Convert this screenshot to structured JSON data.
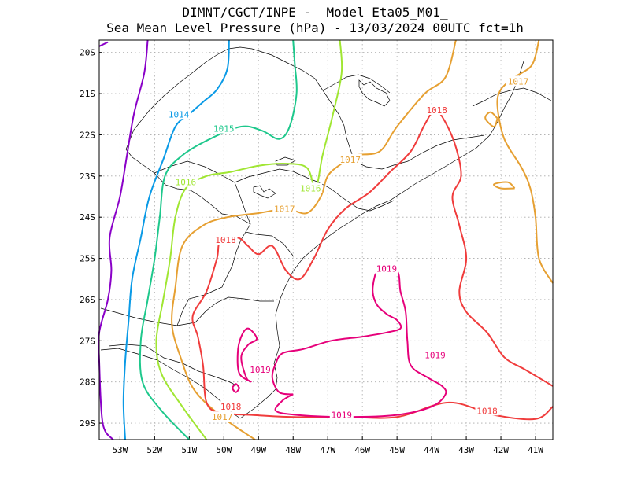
{
  "title": {
    "line1": "DIMNT/CGCT/INPE -  Model Eta05_M01_",
    "line2": "Sea Mean Level Pressure (hPa) - 13/03/2024 00UTC fct=1h"
  },
  "axes": {
    "lat_labels": [
      "20S",
      "21S",
      "22S",
      "23S",
      "24S",
      "25S",
      "26S",
      "27S",
      "28S",
      "29S"
    ],
    "lon_labels": [
      "53W",
      "52W",
      "51W",
      "50W",
      "49W",
      "48W",
      "47W",
      "46W",
      "45W",
      "44W",
      "43W",
      "42W",
      "41W"
    ],
    "lon_range": [
      -53.6,
      -40.5
    ],
    "lat_range": [
      -29.4,
      -19.7
    ],
    "grid": true
  },
  "colors": {
    "c1013": "#8a00c8",
    "c1014": "#0a9ae6",
    "c1015": "#1ec88c",
    "c1016": "#a0e632",
    "c1017": "#e6a032",
    "c1018": "#f03c3c",
    "c1019": "#e6007a"
  },
  "isobars": [
    {
      "level": 1013,
      "color": "c1013",
      "points": [
        [
          -53.2,
          -29.4
        ],
        [
          -53.5,
          -29.0
        ],
        [
          -53.6,
          -27.5
        ],
        [
          -53.6,
          -26.8
        ],
        [
          -53.35,
          -26.0
        ],
        [
          -53.25,
          -25.3
        ],
        [
          -53.3,
          -24.5
        ],
        [
          -53.0,
          -23.5
        ],
        [
          -52.8,
          -22.5
        ],
        [
          -52.6,
          -21.5
        ],
        [
          -52.3,
          -20.5
        ],
        [
          -52.2,
          -19.7
        ]
      ]
    },
    {
      "level": 1013,
      "color": "c1013",
      "points": [
        [
          -53.6,
          -19.85
        ],
        [
          -53.35,
          -19.75
        ]
      ]
    },
    {
      "level": 1014,
      "color": "c1014",
      "points": [
        [
          -52.85,
          -29.4
        ],
        [
          -52.9,
          -28.5
        ],
        [
          -52.85,
          -27.5
        ],
        [
          -52.75,
          -26.5
        ],
        [
          -52.65,
          -25.5
        ],
        [
          -52.4,
          -24.5
        ],
        [
          -52.15,
          -23.5
        ],
        [
          -51.75,
          -22.6
        ],
        [
          -51.4,
          -21.8
        ],
        [
          -51.0,
          -21.5
        ],
        [
          -50.6,
          -21.2
        ],
        [
          -50.2,
          -20.9
        ],
        [
          -49.9,
          -20.4
        ],
        [
          -49.85,
          -19.7
        ]
      ]
    },
    {
      "level": 1015,
      "color": "c1015",
      "points": [
        [
          -51.0,
          -29.4
        ],
        [
          -51.8,
          -28.7
        ],
        [
          -52.35,
          -28.0
        ],
        [
          -52.4,
          -27.0
        ],
        [
          -52.2,
          -26.0
        ],
        [
          -52.0,
          -25.0
        ],
        [
          -51.85,
          -24.0
        ],
        [
          -51.7,
          -23.0
        ],
        [
          -51.2,
          -22.5
        ],
        [
          -50.4,
          -22.1
        ],
        [
          -49.5,
          -21.8
        ],
        [
          -48.9,
          -21.9
        ],
        [
          -48.4,
          -22.1
        ],
        [
          -48.1,
          -21.8
        ],
        [
          -47.9,
          -21.0
        ],
        [
          -47.95,
          -20.3
        ],
        [
          -48.0,
          -19.7
        ]
      ]
    },
    {
      "level": 1016,
      "color": "c1016",
      "points": [
        [
          -50.5,
          -29.4
        ],
        [
          -51.2,
          -28.6
        ],
        [
          -51.8,
          -27.8
        ],
        [
          -51.95,
          -27.0
        ],
        [
          -51.75,
          -26.0
        ],
        [
          -51.55,
          -25.0
        ],
        [
          -51.4,
          -24.0
        ],
        [
          -51.1,
          -23.3
        ],
        [
          -50.5,
          -23.0
        ],
        [
          -49.8,
          -22.9
        ],
        [
          -49.0,
          -22.75
        ],
        [
          -48.2,
          -22.7
        ],
        [
          -47.6,
          -22.8
        ],
        [
          -47.35,
          -23.3
        ],
        [
          -47.15,
          -22.5
        ],
        [
          -46.85,
          -21.5
        ],
        [
          -46.6,
          -20.5
        ],
        [
          -46.65,
          -19.7
        ]
      ]
    },
    {
      "level": 1017,
      "color": "c1017",
      "points": [
        [
          -49.1,
          -29.4
        ],
        [
          -50.05,
          -28.85
        ],
        [
          -50.85,
          -28.2
        ],
        [
          -51.25,
          -27.4
        ],
        [
          -51.5,
          -26.6
        ],
        [
          -51.4,
          -25.7
        ],
        [
          -51.2,
          -24.7
        ],
        [
          -50.6,
          -24.2
        ],
        [
          -49.9,
          -24.0
        ],
        [
          -49.0,
          -23.9
        ],
        [
          -48.2,
          -23.8
        ],
        [
          -47.6,
          -23.9
        ],
        [
          -47.2,
          -23.5
        ],
        [
          -47.0,
          -23.0
        ],
        [
          -46.6,
          -22.7
        ],
        [
          -46.2,
          -22.5
        ],
        [
          -45.5,
          -22.4
        ],
        [
          -45.0,
          -21.8
        ],
        [
          -44.2,
          -21.0
        ],
        [
          -43.6,
          -20.6
        ],
        [
          -43.3,
          -19.7
        ]
      ]
    },
    {
      "level": 1017,
      "color": "c1017",
      "points": [
        [
          -40.5,
          -25.6
        ],
        [
          -40.9,
          -25.0
        ],
        [
          -41.0,
          -24.0
        ],
        [
          -41.15,
          -23.3
        ],
        [
          -41.4,
          -22.8
        ],
        [
          -41.9,
          -22.1
        ],
        [
          -42.1,
          -21.3
        ],
        [
          -42.0,
          -20.9
        ],
        [
          -41.6,
          -20.6
        ],
        [
          -41.1,
          -20.3
        ],
        [
          -40.9,
          -19.7
        ]
      ]
    },
    {
      "level": 1017,
      "color": "c1017",
      "points": [
        [
          -42.1,
          -21.6
        ],
        [
          -42.2,
          -21.8
        ],
        [
          -42.45,
          -21.6
        ],
        [
          -42.3,
          -21.45
        ],
        [
          -42.1,
          -21.6
        ]
      ]
    },
    {
      "level": 1017,
      "color": "c1017",
      "points": [
        [
          -41.6,
          -23.3
        ],
        [
          -41.8,
          -23.15
        ],
        [
          -42.2,
          -23.2
        ],
        [
          -42.0,
          -23.3
        ],
        [
          -41.6,
          -23.3
        ]
      ]
    },
    {
      "level": 1018,
      "color": "c1018",
      "points": [
        [
          -40.5,
          -28.6
        ],
        [
          -41.0,
          -28.9
        ],
        [
          -42.2,
          -28.8
        ],
        [
          -43.5,
          -28.5
        ],
        [
          -45.0,
          -28.85
        ],
        [
          -46.5,
          -28.85
        ],
        [
          -48.0,
          -28.85
        ],
        [
          -49.2,
          -28.8
        ],
        [
          -50.1,
          -28.75
        ],
        [
          -50.5,
          -28.5
        ],
        [
          -50.6,
          -27.6
        ],
        [
          -50.75,
          -26.9
        ],
        [
          -50.9,
          -26.4
        ],
        [
          -50.5,
          -25.8
        ],
        [
          -50.2,
          -25.0
        ],
        [
          -50.1,
          -24.6
        ],
        [
          -49.6,
          -24.5
        ],
        [
          -49.3,
          -24.7
        ],
        [
          -49.0,
          -24.9
        ],
        [
          -48.6,
          -24.7
        ],
        [
          -48.2,
          -25.3
        ],
        [
          -47.8,
          -25.5
        ],
        [
          -47.4,
          -25.0
        ],
        [
          -47.0,
          -24.3
        ],
        [
          -46.5,
          -23.8
        ],
        [
          -45.8,
          -23.4
        ],
        [
          -45.2,
          -22.9
        ],
        [
          -44.6,
          -22.4
        ],
        [
          -44.2,
          -21.75
        ],
        [
          -43.9,
          -21.4
        ],
        [
          -43.6,
          -21.7
        ],
        [
          -43.3,
          -22.3
        ],
        [
          -43.15,
          -23.0
        ],
        [
          -43.4,
          -23.5
        ],
        [
          -43.2,
          -24.2
        ],
        [
          -43.0,
          -25.0
        ],
        [
          -43.2,
          -25.8
        ],
        [
          -43.0,
          -26.3
        ],
        [
          -42.4,
          -26.8
        ],
        [
          -41.9,
          -27.4
        ],
        [
          -41.3,
          -27.7
        ],
        [
          -40.7,
          -28.0
        ],
        [
          -40.5,
          -28.1
        ]
      ]
    },
    {
      "level": 1019,
      "color": "c1019",
      "points": [
        [
          -48.0,
          -28.3
        ],
        [
          -48.3,
          -28.45
        ],
        [
          -48.5,
          -28.7
        ],
        [
          -47.9,
          -28.8
        ],
        [
          -46.5,
          -28.85
        ],
        [
          -45.0,
          -28.8
        ],
        [
          -44.0,
          -28.6
        ],
        [
          -43.6,
          -28.3
        ],
        [
          -43.7,
          -28.1
        ],
        [
          -44.1,
          -27.9
        ],
        [
          -44.6,
          -27.6
        ],
        [
          -44.7,
          -27.0
        ],
        [
          -44.75,
          -26.3
        ],
        [
          -44.9,
          -25.8
        ],
        [
          -45.0,
          -25.3
        ],
        [
          -45.5,
          -25.2
        ],
        [
          -45.7,
          -25.7
        ],
        [
          -45.6,
          -26.1
        ],
        [
          -45.3,
          -26.35
        ],
        [
          -45.0,
          -26.5
        ],
        [
          -44.9,
          -26.7
        ],
        [
          -45.3,
          -26.8
        ],
        [
          -46.0,
          -26.9
        ],
        [
          -46.9,
          -27.0
        ],
        [
          -47.7,
          -27.2
        ],
        [
          -48.3,
          -27.3
        ],
        [
          -48.5,
          -27.55
        ],
        [
          -48.6,
          -27.9
        ],
        [
          -48.4,
          -28.25
        ],
        [
          -48.0,
          -28.3
        ]
      ]
    },
    {
      "level": 1019,
      "color": "c1019",
      "points": [
        [
          -49.2,
          -28.0
        ],
        [
          -49.35,
          -27.9
        ],
        [
          -49.5,
          -27.4
        ],
        [
          -49.3,
          -27.1
        ],
        [
          -49.05,
          -26.95
        ],
        [
          -49.3,
          -26.7
        ],
        [
          -49.5,
          -26.9
        ],
        [
          -49.6,
          -27.3
        ],
        [
          -49.55,
          -27.8
        ],
        [
          -49.2,
          -28.0
        ]
      ]
    },
    {
      "level": 1019,
      "color": "c1019",
      "points": [
        [
          -49.55,
          -28.15
        ],
        [
          -49.65,
          -28.05
        ],
        [
          -49.75,
          -28.15
        ],
        [
          -49.65,
          -28.25
        ],
        [
          -49.55,
          -28.15
        ]
      ]
    }
  ],
  "contour_labels": [
    {
      "text": "1014",
      "color": "c1014",
      "lon": -51.3,
      "lat": -21.5
    },
    {
      "text": "1015",
      "color": "c1015",
      "lon": -50.0,
      "lat": -21.85
    },
    {
      "text": "1016",
      "color": "c1016",
      "lon": -51.1,
      "lat": -23.15
    },
    {
      "text": "1016",
      "color": "c1016",
      "lon": -47.5,
      "lat": -23.3
    },
    {
      "text": "1017",
      "color": "c1017",
      "lon": -48.25,
      "lat": -23.8
    },
    {
      "text": "1017",
      "color": "c1017",
      "lon": -46.35,
      "lat": -22.6
    },
    {
      "text": "1017",
      "color": "c1017",
      "lon": -41.5,
      "lat": -20.7
    },
    {
      "text": "1017",
      "color": "c1017",
      "lon": -50.05,
      "lat": -28.85
    },
    {
      "text": "1018",
      "color": "c1018",
      "lon": -43.85,
      "lat": -21.4
    },
    {
      "text": "1018",
      "color": "c1018",
      "lon": -49.95,
      "lat": -24.55
    },
    {
      "text": "1018",
      "color": "c1018",
      "lon": -49.8,
      "lat": -28.6
    },
    {
      "text": "1018",
      "color": "c1018",
      "lon": -42.4,
      "lat": -28.7
    },
    {
      "text": "1019",
      "color": "c1019",
      "lon": -45.3,
      "lat": -25.25
    },
    {
      "text": "1019",
      "color": "c1019",
      "lon": -48.95,
      "lat": -27.7
    },
    {
      "text": "1019",
      "color": "c1019",
      "lon": -46.6,
      "lat": -28.8
    },
    {
      "text": "1019",
      "color": "c1019",
      "lon": -43.9,
      "lat": -27.35
    }
  ]
}
